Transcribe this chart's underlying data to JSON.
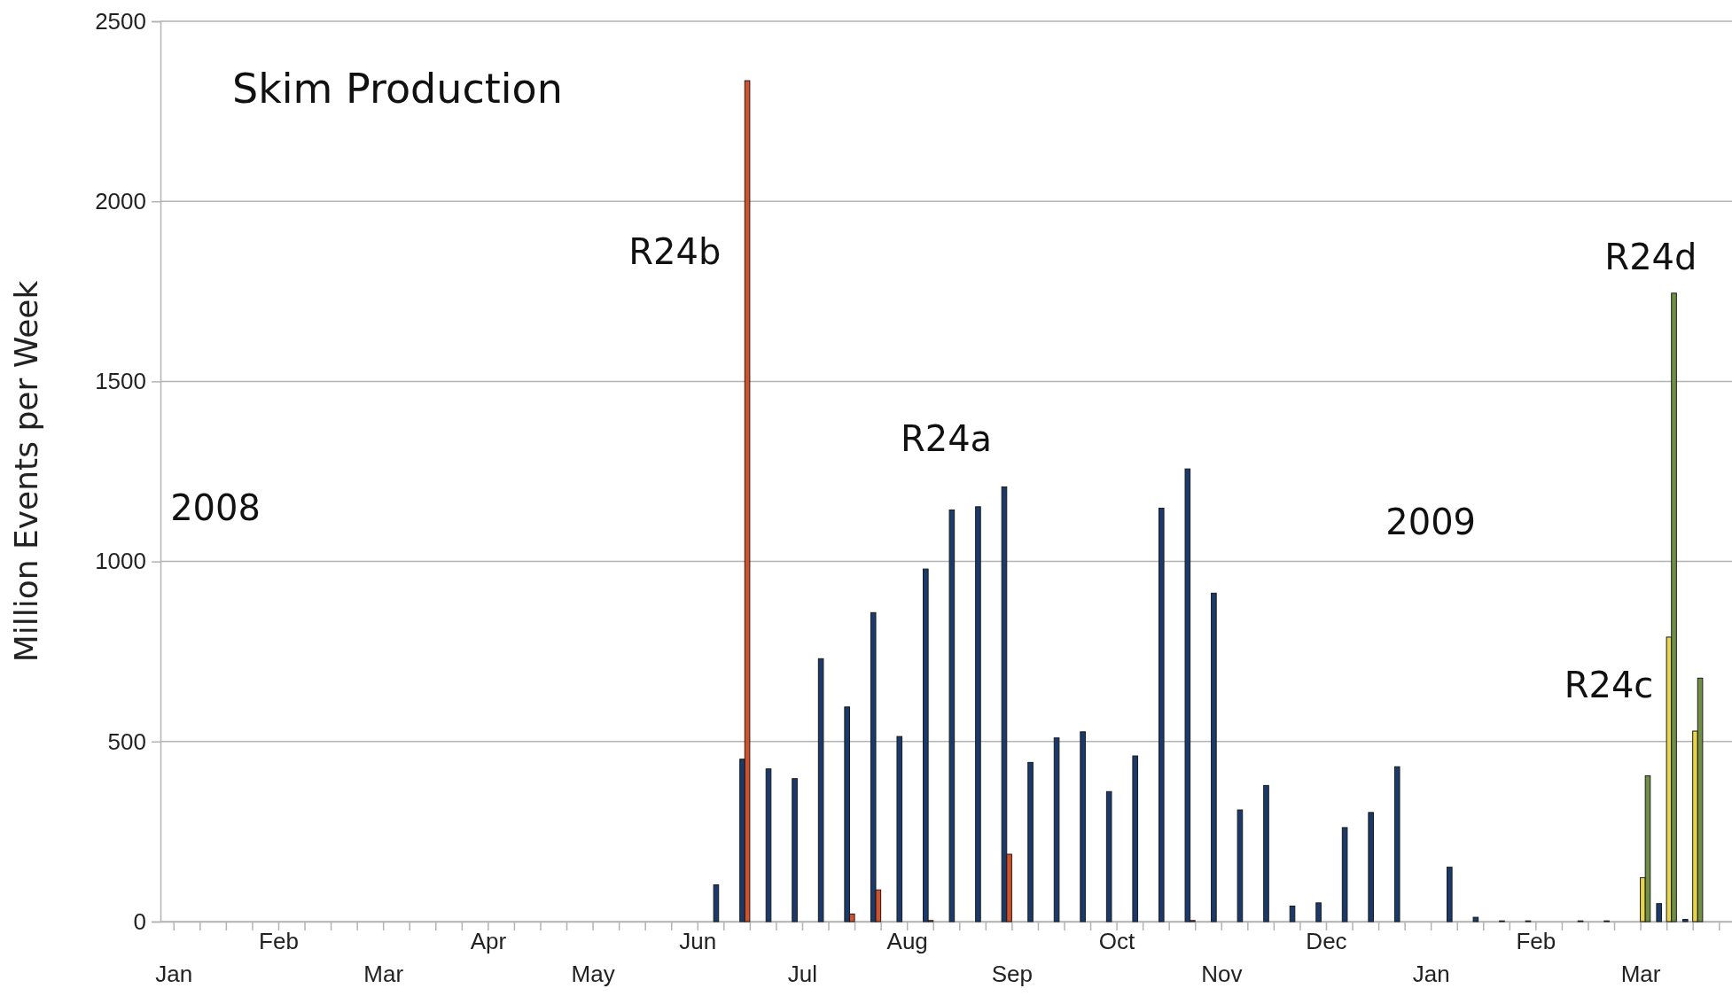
{
  "chart_data": {
    "type": "bar",
    "title": "Skim Production",
    "ylabel": "Million Events per Week",
    "categories": [
      "Jan",
      null,
      null,
      null,
      "Feb",
      null,
      null,
      null,
      "Mar",
      null,
      null,
      null,
      "Apr",
      null,
      null,
      null,
      "May",
      null,
      null,
      null,
      "Jun",
      null,
      null,
      null,
      "Jul",
      null,
      null,
      null,
      "Aug",
      null,
      null,
      null,
      "Sep",
      null,
      null,
      null,
      "Oct",
      null,
      null,
      null,
      "Nov",
      null,
      null,
      null,
      "Dec",
      null,
      null,
      null,
      "Jan",
      null,
      null,
      null,
      "Feb",
      null,
      null,
      null,
      "Mar",
      null,
      null,
      null
    ],
    "series": [
      {
        "name": "R24a",
        "color": "#1a3a6b",
        "values": [
          null,
          null,
          null,
          null,
          null,
          null,
          null,
          null,
          null,
          null,
          null,
          null,
          null,
          null,
          null,
          null,
          null,
          null,
          null,
          null,
          null,
          102,
          451,
          424,
          397,
          730,
          596,
          858,
          514,
          979,
          1143,
          1152,
          1207,
          442,
          510,
          527,
          361,
          460,
          1148,
          1257,
          912,
          310,
          378,
          43,
          52,
          261,
          303,
          430,
          null,
          151,
          12,
          2,
          2,
          null,
          2,
          2,
          null,
          50,
          6,
          null
        ]
      },
      {
        "name": "R24b",
        "color": "#d4502a",
        "values": [
          null,
          null,
          null,
          null,
          null,
          null,
          null,
          null,
          null,
          null,
          null,
          null,
          null,
          null,
          null,
          null,
          null,
          null,
          null,
          null,
          null,
          null,
          2335,
          null,
          null,
          null,
          21,
          88,
          null,
          3,
          null,
          null,
          187,
          null,
          null,
          null,
          null,
          null,
          null,
          3,
          null,
          null,
          null,
          null,
          null,
          null,
          null,
          null,
          null,
          null,
          null,
          null,
          null,
          null,
          null,
          null,
          null,
          null,
          null,
          null
        ]
      },
      {
        "name": "R24c",
        "color": "#e8d44d",
        "values": [
          null,
          null,
          null,
          null,
          null,
          null,
          null,
          null,
          null,
          null,
          null,
          null,
          null,
          null,
          null,
          null,
          null,
          null,
          null,
          null,
          null,
          null,
          null,
          null,
          null,
          null,
          null,
          null,
          null,
          null,
          null,
          null,
          null,
          null,
          null,
          null,
          null,
          null,
          null,
          null,
          null,
          null,
          null,
          null,
          null,
          null,
          null,
          null,
          null,
          null,
          null,
          null,
          null,
          null,
          null,
          null,
          122,
          790,
          529,
          null
        ]
      },
      {
        "name": "R24d",
        "color": "#6f8f45",
        "values": [
          null,
          null,
          null,
          null,
          null,
          null,
          null,
          null,
          null,
          null,
          null,
          null,
          null,
          null,
          null,
          null,
          null,
          null,
          null,
          null,
          null,
          null,
          null,
          null,
          null,
          null,
          null,
          null,
          null,
          null,
          null,
          null,
          null,
          null,
          null,
          null,
          null,
          null,
          null,
          null,
          null,
          null,
          null,
          null,
          null,
          null,
          null,
          null,
          null,
          null,
          null,
          null,
          null,
          null,
          null,
          null,
          405,
          1745,
          676,
          null
        ]
      }
    ],
    "ylim": [
      0,
      2500
    ],
    "yticks": [
      0,
      500,
      1000,
      1500,
      2000,
      2500
    ],
    "grid": "y",
    "legend": false,
    "annotations": [
      "2008",
      "2009"
    ]
  }
}
